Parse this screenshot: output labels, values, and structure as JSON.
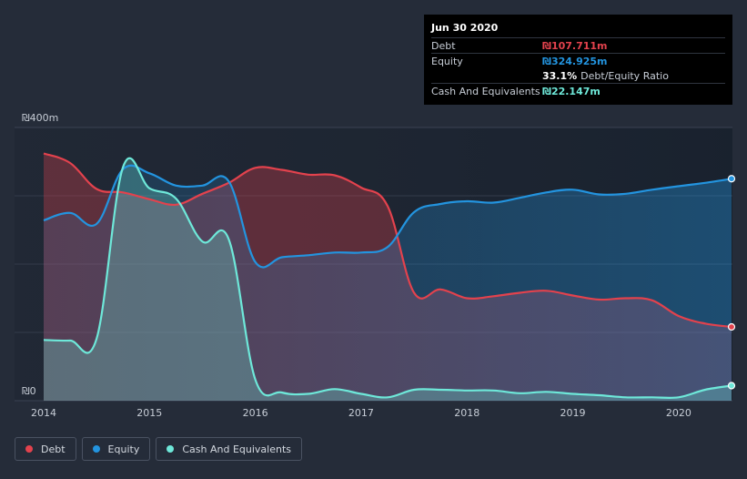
{
  "colors": {
    "debt": "#e3424d",
    "equity": "#2394df",
    "cash": "#6ee8d9",
    "background": "#252c39"
  },
  "tooltip": {
    "date": "Jun 30 2020",
    "debt_label": "Debt",
    "debt_value": "₪107.711m",
    "equity_label": "Equity",
    "equity_value": "₪324.925m",
    "ratio_value": "33.1%",
    "ratio_label": "Debt/Equity Ratio",
    "cash_label": "Cash And Equivalents",
    "cash_value": "₪22.147m"
  },
  "legend": [
    {
      "label": "Debt",
      "icon": "dot-icon"
    },
    {
      "label": "Equity",
      "icon": "dot-icon"
    },
    {
      "label": "Cash And Equivalents",
      "icon": "dot-icon"
    }
  ],
  "chart_data": {
    "type": "area",
    "title": "",
    "xlabel": "",
    "ylabel": "",
    "ylim": [
      0,
      400
    ],
    "xlim": [
      2014.0,
      2020.5
    ],
    "y_tick_labels": [
      {
        "value": 400,
        "label": "₪400m"
      },
      {
        "value": 0,
        "label": "₪0"
      }
    ],
    "x_ticks": [
      2014,
      2015,
      2016,
      2017,
      2018,
      2019,
      2020
    ],
    "gridlines": [
      100,
      200,
      300
    ],
    "series": [
      {
        "name": "Debt",
        "key": "debt",
        "points": [
          [
            2014.0,
            362
          ],
          [
            2014.25,
            348
          ],
          [
            2014.5,
            310
          ],
          [
            2014.75,
            305
          ],
          [
            2015.0,
            295
          ],
          [
            2015.25,
            287
          ],
          [
            2015.5,
            303
          ],
          [
            2015.75,
            319
          ],
          [
            2016.0,
            341
          ],
          [
            2016.25,
            338
          ],
          [
            2016.5,
            331
          ],
          [
            2016.75,
            330
          ],
          [
            2017.0,
            312
          ],
          [
            2017.25,
            285
          ],
          [
            2017.5,
            158
          ],
          [
            2017.75,
            163
          ],
          [
            2018.0,
            150
          ],
          [
            2018.25,
            153
          ],
          [
            2018.5,
            158
          ],
          [
            2018.75,
            161
          ],
          [
            2019.0,
            154
          ],
          [
            2019.25,
            148
          ],
          [
            2019.5,
            150
          ],
          [
            2019.75,
            147
          ],
          [
            2020.0,
            124
          ],
          [
            2020.25,
            113
          ],
          [
            2020.5,
            108
          ]
        ]
      },
      {
        "name": "Equity",
        "key": "equity",
        "points": [
          [
            2014.0,
            264
          ],
          [
            2014.25,
            275
          ],
          [
            2014.5,
            259
          ],
          [
            2014.75,
            339
          ],
          [
            2015.0,
            333
          ],
          [
            2015.25,
            315
          ],
          [
            2015.5,
            315
          ],
          [
            2015.75,
            321
          ],
          [
            2016.0,
            203
          ],
          [
            2016.25,
            210
          ],
          [
            2016.5,
            213
          ],
          [
            2016.75,
            217
          ],
          [
            2017.0,
            217
          ],
          [
            2017.25,
            225
          ],
          [
            2017.5,
            276
          ],
          [
            2017.75,
            288
          ],
          [
            2018.0,
            292
          ],
          [
            2018.25,
            290
          ],
          [
            2018.5,
            297
          ],
          [
            2018.75,
            305
          ],
          [
            2019.0,
            309
          ],
          [
            2019.25,
            302
          ],
          [
            2019.5,
            303
          ],
          [
            2019.75,
            309
          ],
          [
            2020.0,
            314
          ],
          [
            2020.25,
            319
          ],
          [
            2020.5,
            325
          ]
        ]
      },
      {
        "name": "Cash And Equivalents",
        "key": "cash",
        "points": [
          [
            2014.0,
            89
          ],
          [
            2014.25,
            88
          ],
          [
            2014.5,
            91
          ],
          [
            2014.75,
            342
          ],
          [
            2015.0,
            311
          ],
          [
            2015.25,
            296
          ],
          [
            2015.5,
            233
          ],
          [
            2015.75,
            236
          ],
          [
            2016.0,
            31
          ],
          [
            2016.25,
            12
          ],
          [
            2016.5,
            10
          ],
          [
            2016.75,
            17
          ],
          [
            2017.0,
            10
          ],
          [
            2017.25,
            5
          ],
          [
            2017.5,
            16
          ],
          [
            2017.75,
            16
          ],
          [
            2018.0,
            15
          ],
          [
            2018.25,
            15
          ],
          [
            2018.5,
            11
          ],
          [
            2018.75,
            13
          ],
          [
            2019.0,
            10
          ],
          [
            2019.25,
            8
          ],
          [
            2019.5,
            5
          ],
          [
            2019.75,
            5
          ],
          [
            2020.0,
            5
          ],
          [
            2020.25,
            16
          ],
          [
            2020.5,
            22
          ]
        ]
      }
    ]
  }
}
